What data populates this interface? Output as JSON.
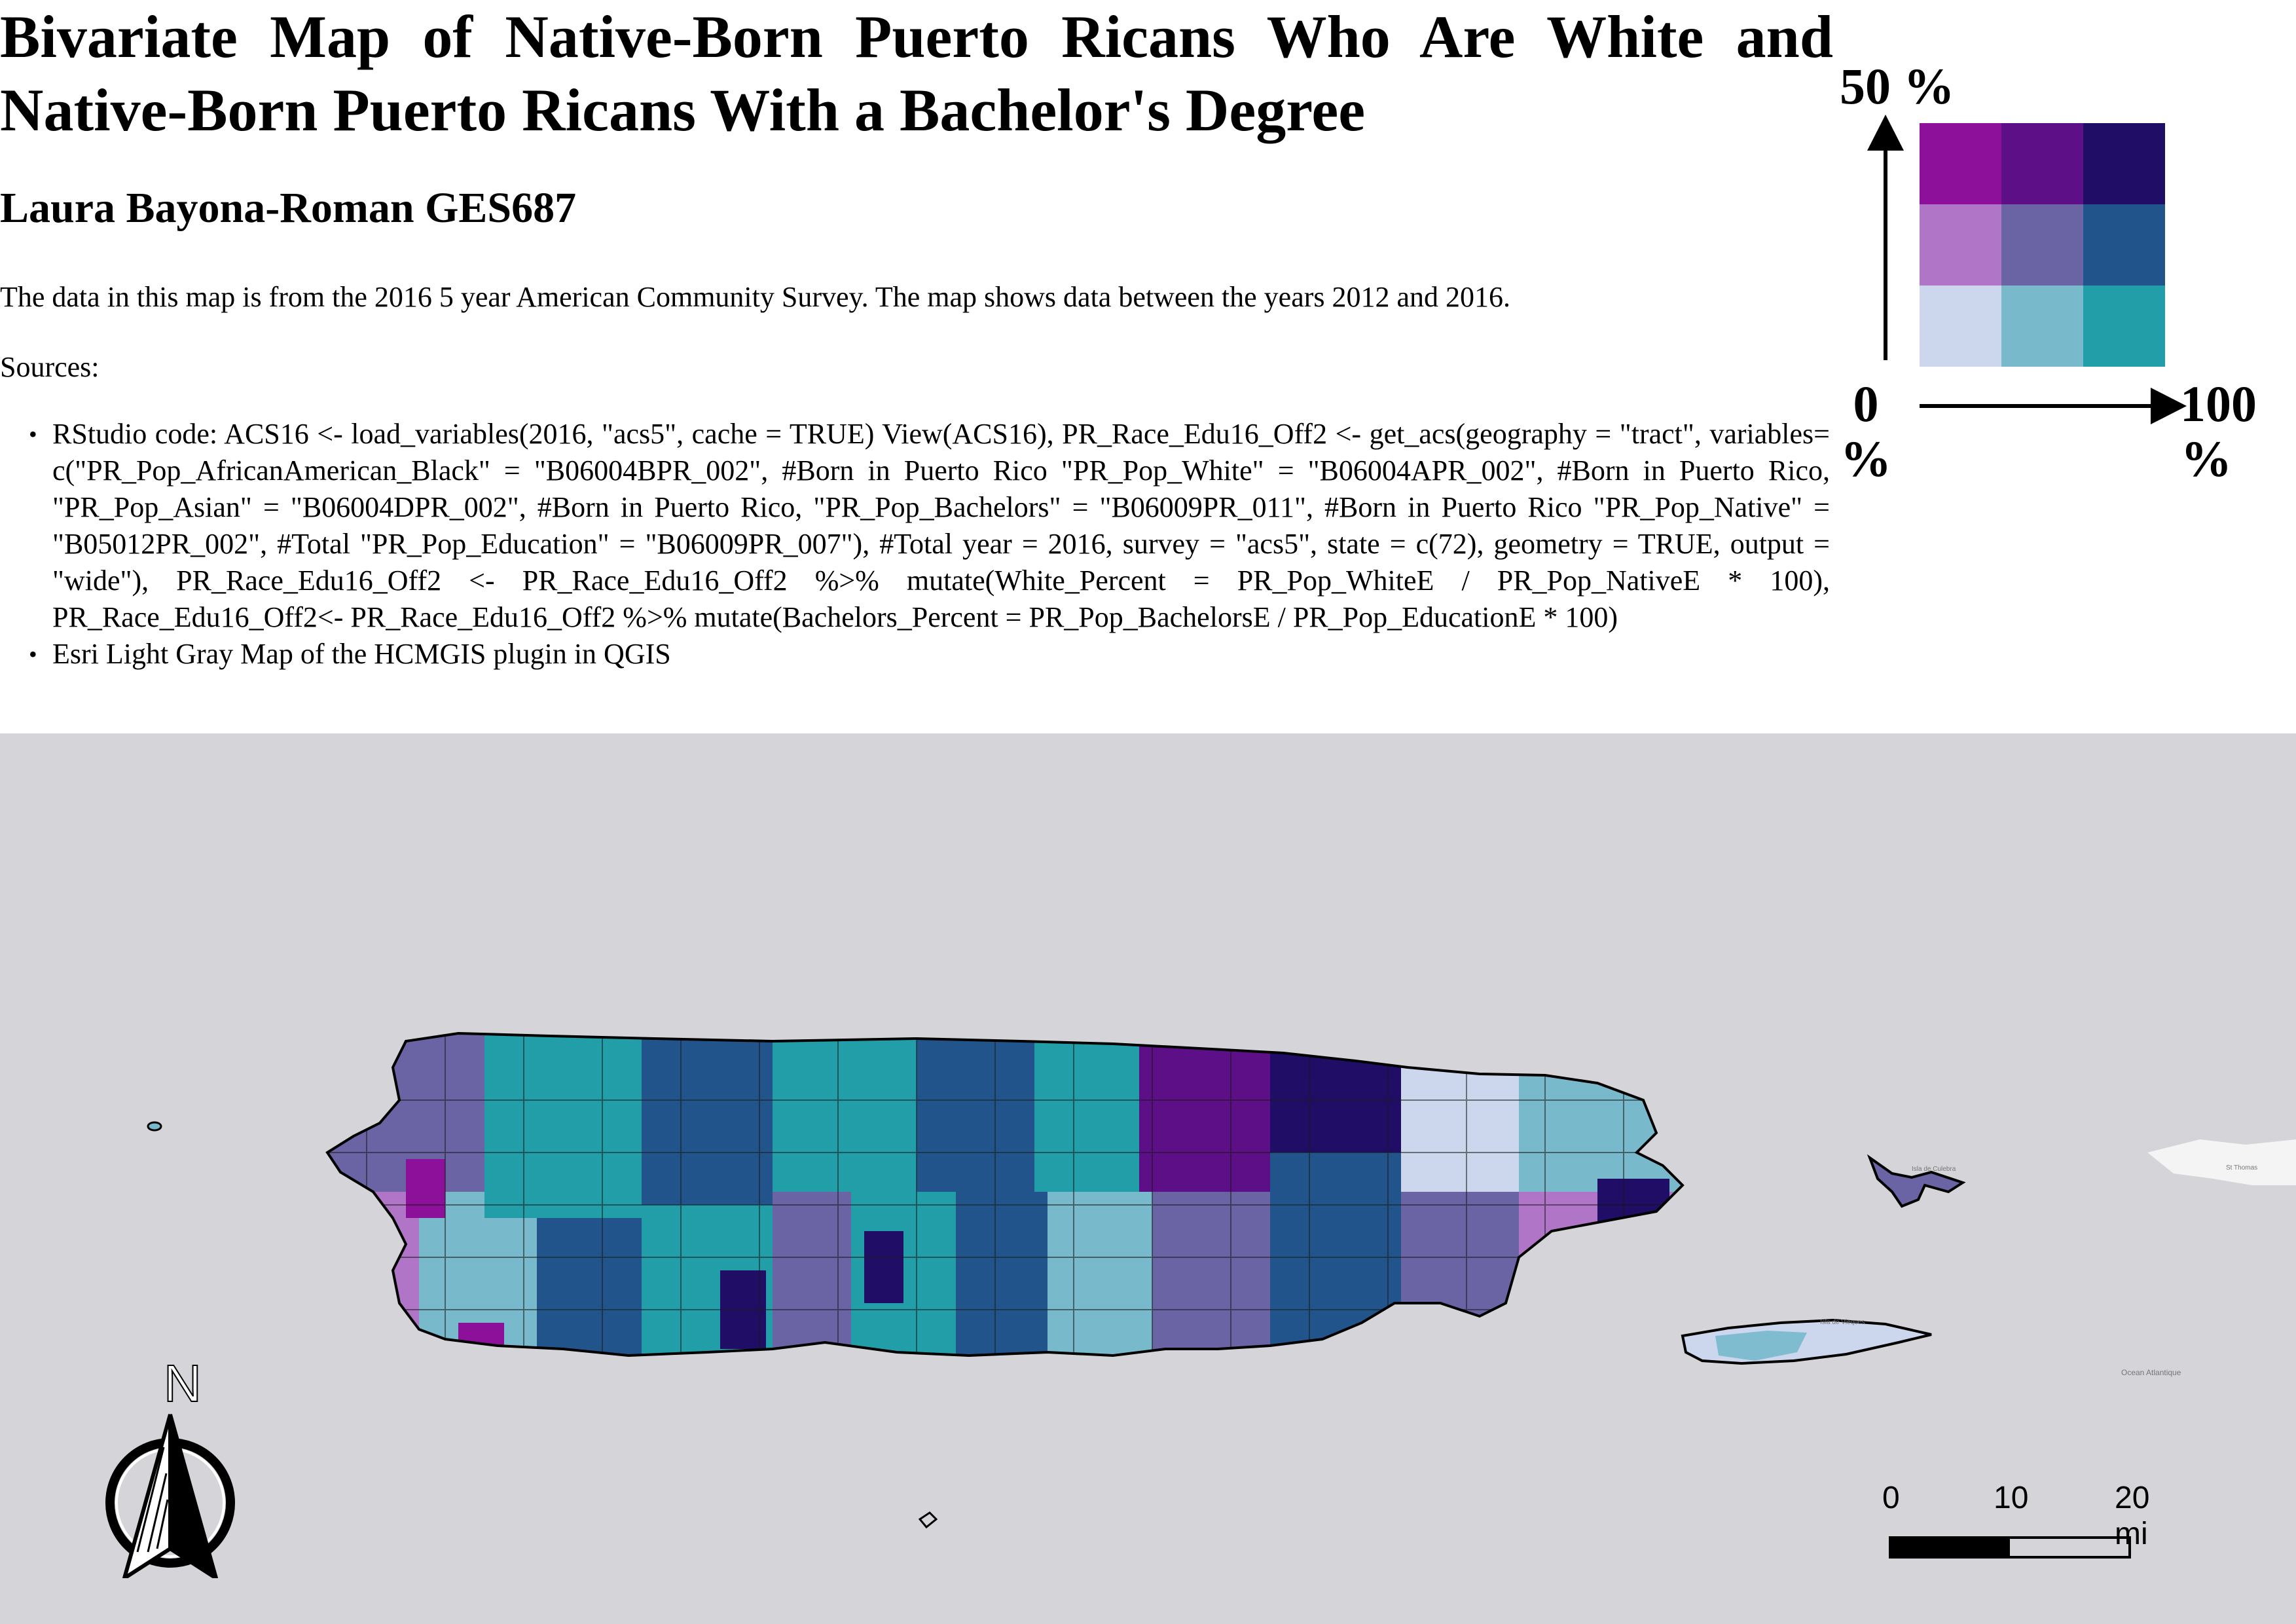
{
  "title": "Bivariate Map of Native-Born Puerto Ricans Who Are White and Native-Born Puerto Ricans With a Bachelor's Degree",
  "author": "Laura Bayona-Roman GES687",
  "description": "The data in this map is from the 2016 5 year American Community Survey. The map shows data between the years 2012 and 2016.",
  "sources_label": "Sources:",
  "sources": [
    "RStudio code: ACS16 <- load_variables(2016, \"acs5\", cache = TRUE) View(ACS16), PR_Race_Edu16_Off2 <- get_acs(geography = \"tract\", variables= c(\"PR_Pop_AfricanAmerican_Black\" = \"B06004BPR_002\", #Born in Puerto Rico \"PR_Pop_White\" = \"B06004APR_002\", #Born in Puerto Rico, \"PR_Pop_Asian\" = \"B06004DPR_002\", #Born in Puerto Rico, \"PR_Pop_Bachelors\" = \"B06009PR_011\", #Born in Puerto Rico \"PR_Pop_Native\" = \"B05012PR_002\", #Total \"PR_Pop_Education\" = \"B06009PR_007\"), #Total year = 2016, survey = \"acs5\", state = c(72), geometry = TRUE, output = \"wide\"), PR_Race_Edu16_Off2 <- PR_Race_Edu16_Off2 %>% mutate(White_Percent = PR_Pop_WhiteE / PR_Pop_NativeE * 100), PR_Race_Edu16_Off2<- PR_Race_Edu16_Off2 %>% mutate(Bachelors_Percent = PR_Pop_BachelorsE / PR_Pop_EducationE * 100)",
    "Esri Light Gray Map of the HCMGIS plugin in QGIS"
  ],
  "legend": {
    "y_top_label": "50 %",
    "x_left_label": "0 %",
    "x_right_label": "100 %",
    "colors": [
      [
        "#8d109a",
        "#5c0f86",
        "#200d66"
      ],
      [
        "#b075c6",
        "#6a64a5",
        "#22548c"
      ],
      [
        "#ccd7ee",
        "#78b9cc",
        "#229ea9"
      ]
    ]
  },
  "scale_bar": {
    "labels": [
      "0",
      "10",
      "20 mi"
    ]
  },
  "north_arrow": {
    "label": "N"
  },
  "map_background": "#d4d4d9",
  "basemap_labels": [
    "Ocean Atlantique",
    "Isla de Vieques",
    "Isla de Culebra",
    "St Thomas"
  ]
}
